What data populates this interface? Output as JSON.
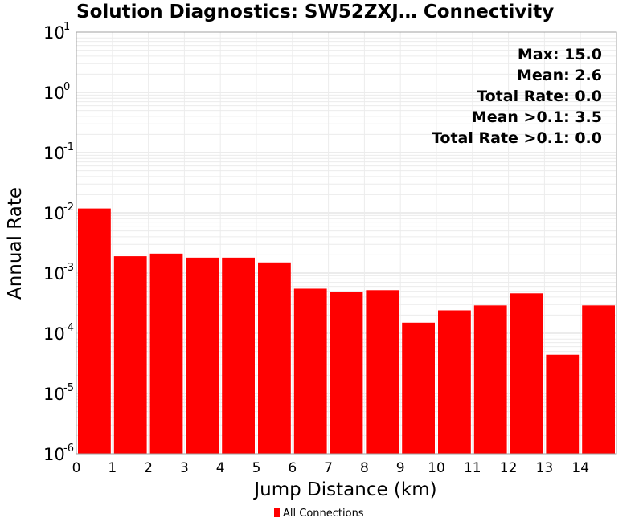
{
  "chart_data": {
    "type": "bar",
    "title": "Solution Diagnostics: SW52ZXJ… Connectivity",
    "xlabel": "Jump Distance (km)",
    "ylabel": "Annual Rate",
    "y_scale": "log",
    "ylim": [
      1e-06,
      10
    ],
    "xlim": [
      0,
      15
    ],
    "x_ticks": [
      "0",
      "1",
      "2",
      "3",
      "4",
      "5",
      "6",
      "7",
      "8",
      "9",
      "10",
      "11",
      "12",
      "13",
      "14"
    ],
    "y_ticks": [
      {
        "base": "10",
        "exp": "1",
        "value": 10
      },
      {
        "base": "10",
        "exp": "0",
        "value": 1
      },
      {
        "base": "10",
        "exp": "-1",
        "value": 0.1
      },
      {
        "base": "10",
        "exp": "-2",
        "value": 0.01
      },
      {
        "base": "10",
        "exp": "-3",
        "value": 0.001
      },
      {
        "base": "10",
        "exp": "-4",
        "value": 0.0001
      },
      {
        "base": "10",
        "exp": "-5",
        "value": 1e-05
      },
      {
        "base": "10",
        "exp": "-6",
        "value": 1e-06
      }
    ],
    "grid": true,
    "legend_position": "bottom",
    "series": [
      {
        "name": "All Connections",
        "color": "#ff0000",
        "x": [
          0.5,
          1.5,
          2.5,
          3.5,
          4.5,
          5.5,
          6.5,
          7.5,
          8.5,
          9.5,
          10.5,
          11.5,
          12.5,
          13.5,
          14.5
        ],
        "values": [
          0.0118,
          0.0019,
          0.0021,
          0.0018,
          0.0018,
          0.0015,
          0.00055,
          0.00048,
          0.00052,
          0.00015,
          0.00024,
          0.00029,
          0.00046,
          4.4e-05,
          0.00029
        ]
      }
    ],
    "annotations": [
      "Max: 15.0",
      "Mean: 2.6",
      "Total Rate: 0.0",
      "Mean >0.1: 3.5",
      "Total Rate >0.1: 0.0"
    ]
  }
}
